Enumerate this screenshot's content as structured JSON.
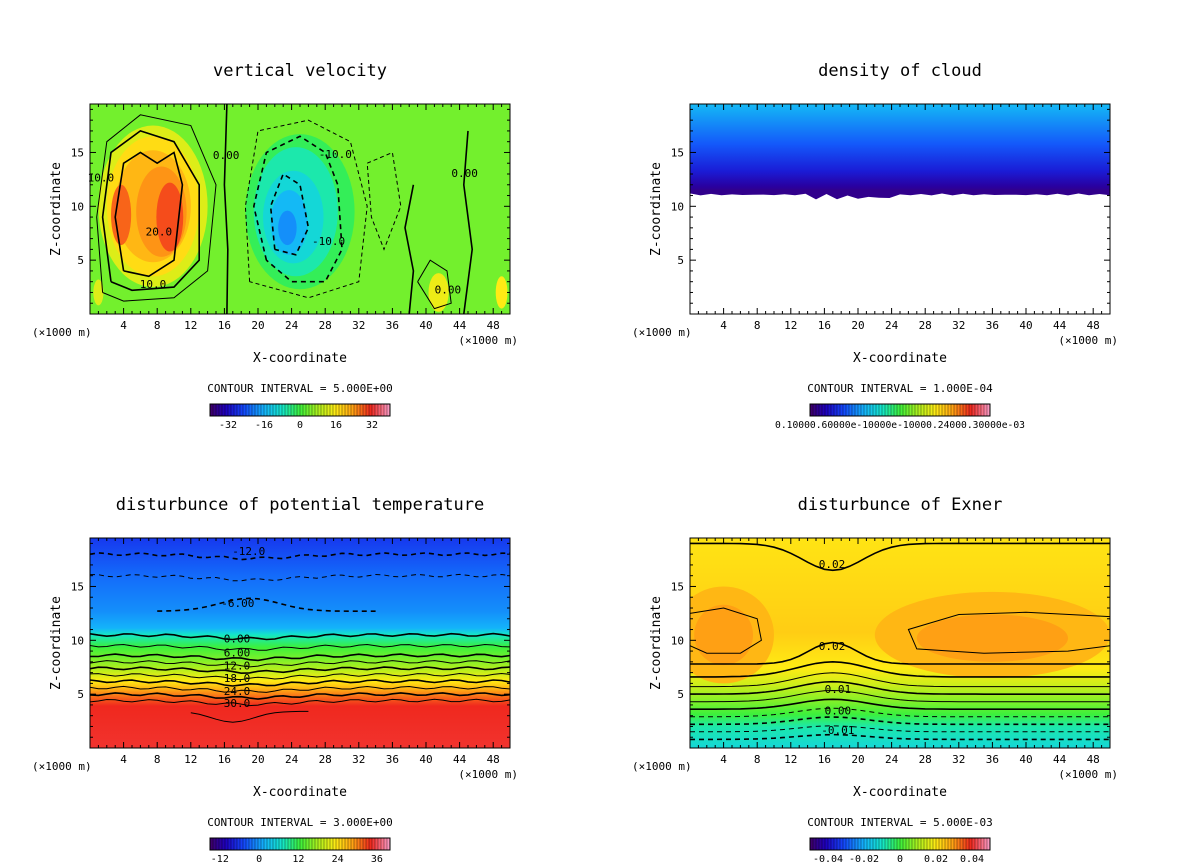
{
  "chart_data": [
    {
      "type": "heatmap",
      "title": "vertical velocity",
      "xlabel": "X-coordinate",
      "ylabel": "Z-coordinate",
      "x_unit": "(×1000 m)",
      "xlim": [
        0,
        50
      ],
      "ylim": [
        0,
        19.5
      ],
      "xticks": [
        4,
        8,
        12,
        16,
        20,
        24,
        28,
        32,
        36,
        40,
        44,
        48
      ],
      "yticks": [
        5,
        10,
        15
      ],
      "contour_interval": "CONTOUR INTERVAL = 5.000E+00",
      "colorbar_range": [
        -40,
        40
      ],
      "colorbar_ticks": [
        "-32",
        "-16",
        "0",
        "16",
        "32"
      ],
      "contour_labels": [
        {
          "text": "10.0",
          "x": 1.3,
          "y": 12.4
        },
        {
          "text": "20.0",
          "x": 8.2,
          "y": 7.4
        },
        {
          "text": "10.0",
          "x": 7.5,
          "y": 2.5
        },
        {
          "text": "0.00",
          "x": 16.2,
          "y": 14.5
        },
        {
          "text": "-10.0",
          "x": 29.2,
          "y": 14.6
        },
        {
          "text": "-10.0",
          "x": 28.4,
          "y": 6.5
        },
        {
          "text": "0.00",
          "x": 44.6,
          "y": 12.8
        },
        {
          "text": "0.00",
          "x": 42.6,
          "y": 2.0
        }
      ]
    },
    {
      "type": "heatmap",
      "title": "density of cloud",
      "xlabel": "X-coordinate",
      "ylabel": "Z-coordinate",
      "x_unit": "(×1000 m)",
      "xlim": [
        0,
        50
      ],
      "ylim": [
        0,
        19.5
      ],
      "xticks": [
        4,
        8,
        12,
        16,
        20,
        24,
        28,
        32,
        36,
        40,
        44,
        48
      ],
      "yticks": [
        5,
        10,
        15
      ],
      "contour_interval": "CONTOUR INTERVAL = 1.000E-04",
      "colorbar_ticks_text": "0.10000.60000e-10000e-10000.24000.30000e-03",
      "cloud_base_z": 11.2
    },
    {
      "type": "heatmap",
      "title": "disturbunce of potential temperature",
      "xlabel": "X-coordinate",
      "ylabel": "Z-coordinate",
      "x_unit": "(×1000 m)",
      "xlim": [
        0,
        50
      ],
      "ylim": [
        0,
        19.5
      ],
      "xticks": [
        4,
        8,
        12,
        16,
        20,
        24,
        28,
        32,
        36,
        40,
        44,
        48
      ],
      "yticks": [
        5,
        10,
        15
      ],
      "contour_interval": "CONTOUR INTERVAL = 3.000E+00",
      "colorbar_range": [
        -15,
        40
      ],
      "colorbar_ticks": [
        "-12",
        "0",
        "12",
        "24",
        "36"
      ],
      "contour_labels": [
        {
          "text": "-12.0",
          "x": 18.9,
          "y": 18.0
        },
        {
          "text": "-6.00",
          "x": 17.6,
          "y": 13.2
        },
        {
          "text": "0.00",
          "x": 17.5,
          "y": 9.9
        },
        {
          "text": "6.00",
          "x": 17.5,
          "y": 8.6
        },
        {
          "text": "12.0",
          "x": 17.5,
          "y": 7.4
        },
        {
          "text": "18.0",
          "x": 17.5,
          "y": 6.2
        },
        {
          "text": "24.0",
          "x": 17.5,
          "y": 5.0
        },
        {
          "text": "30.0",
          "x": 17.5,
          "y": 3.9
        }
      ]
    },
    {
      "type": "heatmap",
      "title": "disturbunce of Exner",
      "xlabel": "X-coordinate",
      "ylabel": "Z-coordinate",
      "x_unit": "(×1000 m)",
      "xlim": [
        0,
        50
      ],
      "ylim": [
        0,
        19.5
      ],
      "xticks": [
        4,
        8,
        12,
        16,
        20,
        24,
        28,
        32,
        36,
        40,
        44,
        48
      ],
      "yticks": [
        5,
        10,
        15
      ],
      "contour_interval": "CONTOUR INTERVAL = 5.000E-03",
      "colorbar_range": [
        -0.05,
        0.05
      ],
      "colorbar_ticks": [
        "-0.04",
        "-0.02",
        "0",
        "0.02",
        "0.04"
      ],
      "contour_labels": [
        {
          "text": "0.02",
          "x": 16.9,
          "y": 16.8
        },
        {
          "text": "0.02",
          "x": 16.9,
          "y": 9.2
        },
        {
          "text": "0.01",
          "x": 17.6,
          "y": 5.2
        },
        {
          "text": "0.00",
          "x": 17.6,
          "y": 3.2
        },
        {
          "text": "-0.01",
          "x": 17.6,
          "y": 1.4
        }
      ]
    }
  ]
}
